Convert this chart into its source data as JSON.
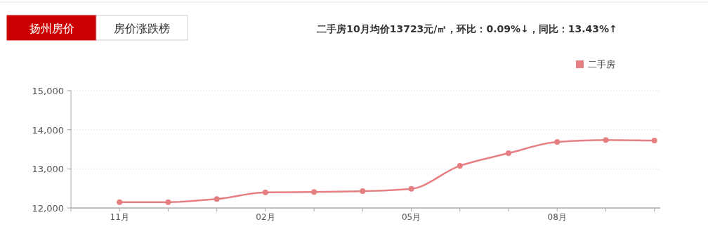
{
  "chart_data": {
    "type": "line",
    "title": "二手房10月均价13723元/㎡，环比：0.09%↓，同比：13.43%↑",
    "annotations": [
      "扬州房价",
      "房价涨跌榜"
    ],
    "categories": [
      "11月",
      null,
      null,
      "02月",
      null,
      null,
      "05月",
      null,
      null,
      "08月",
      null,
      null
    ],
    "series": [
      {
        "name": "二手房",
        "color": "#e57f82",
        "values": [
          12150,
          12150,
          12230,
          12400,
          12410,
          12430,
          12490,
          13080,
          13400,
          13690,
          13740,
          13723
        ]
      }
    ],
    "ylim": [
      12000,
      15000
    ],
    "yticks": [
      {
        "value": 12000,
        "label": "12,000"
      },
      {
        "value": 13000,
        "label": "13,000"
      },
      {
        "value": 14000,
        "label": "14,000"
      },
      {
        "value": 15000,
        "label": "15,000"
      }
    ],
    "grid": "y",
    "legend": "top right",
    "marker": "circle",
    "line_style": "solid"
  }
}
